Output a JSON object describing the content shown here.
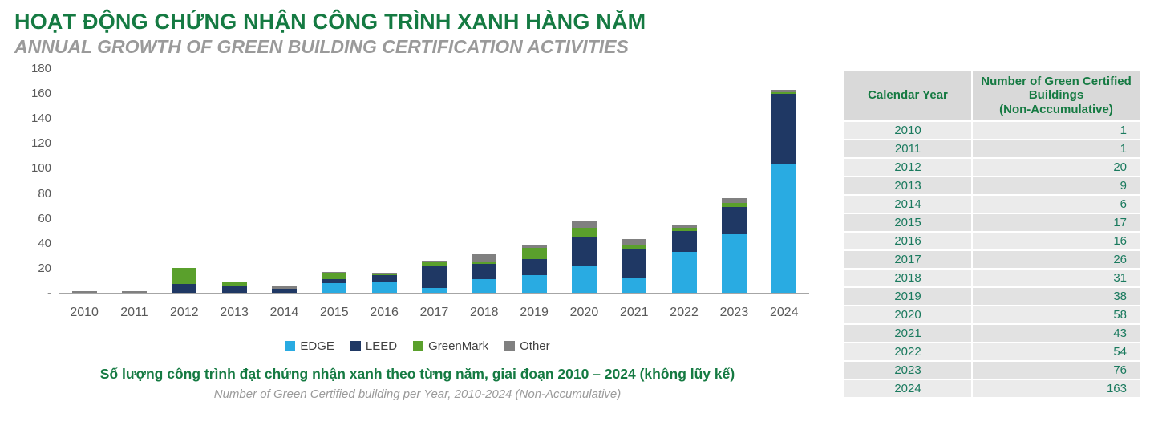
{
  "header": {
    "title_vi": "HOẠT ĐỘNG CHỨNG NHẬN CÔNG TRÌNH XANH HÀNG NĂM",
    "subtitle_en": "ANNUAL GROWTH OF GREEN BUILDING CERTIFICATION ACTIVITIES"
  },
  "chart_data": {
    "type": "bar",
    "stacked": true,
    "title": "",
    "xlabel": "",
    "ylabel": "",
    "ylim": [
      0,
      180
    ],
    "grid": false,
    "legend_position": "bottom",
    "y_ticks": [
      "180",
      "160",
      "140",
      "120",
      "100",
      "80",
      "60",
      "40",
      "20",
      "-"
    ],
    "categories": [
      "2010",
      "2011",
      "2012",
      "2013",
      "2014",
      "2015",
      "2016",
      "2017",
      "2018",
      "2019",
      "2020",
      "2021",
      "2022",
      "2023",
      "2024"
    ],
    "series": [
      {
        "name": "EDGE",
        "color": "#29ABE2",
        "values": [
          0,
          0,
          0,
          0,
          0,
          8,
          9,
          4,
          11,
          14,
          22,
          12,
          33,
          47,
          103
        ]
      },
      {
        "name": "LEED",
        "color": "#1F3864",
        "values": [
          0,
          0,
          7,
          6,
          3,
          3,
          5,
          18,
          12,
          13,
          23,
          23,
          17,
          22,
          57
        ]
      },
      {
        "name": "GreenMark",
        "color": "#5AA02C",
        "values": [
          0,
          0,
          13,
          3,
          0,
          5,
          1,
          3,
          2,
          9,
          7,
          4,
          2,
          3,
          1
        ]
      },
      {
        "name": "Other",
        "color": "#808080",
        "values": [
          1,
          1,
          0,
          0,
          3,
          1,
          1,
          1,
          6,
          2,
          6,
          4,
          2,
          4,
          2
        ]
      }
    ],
    "totals_per_year": [
      1,
      1,
      20,
      9,
      6,
      17,
      16,
      26,
      31,
      38,
      58,
      43,
      54,
      76,
      163
    ]
  },
  "caption": {
    "vi": "Số lượng công trình đạt chứng nhận xanh theo từng năm, giai đoạn 2010 – 2024 (không lũy kế)",
    "en": "Number of Green Certified building per Year, 2010-2024 (Non-Accumulative)"
  },
  "table": {
    "headers": [
      "Calendar Year",
      "Number of Green Certified\nBuildings\n(Non-Accumulative)"
    ],
    "rows": [
      [
        "2010",
        "1"
      ],
      [
        "2011",
        "1"
      ],
      [
        "2012",
        "20"
      ],
      [
        "2013",
        "9"
      ],
      [
        "2014",
        "6"
      ],
      [
        "2015",
        "17"
      ],
      [
        "2016",
        "16"
      ],
      [
        "2017",
        "26"
      ],
      [
        "2018",
        "31"
      ],
      [
        "2019",
        "38"
      ],
      [
        "2020",
        "58"
      ],
      [
        "2021",
        "43"
      ],
      [
        "2022",
        "54"
      ],
      [
        "2023",
        "76"
      ],
      [
        "2024",
        "163"
      ]
    ]
  }
}
